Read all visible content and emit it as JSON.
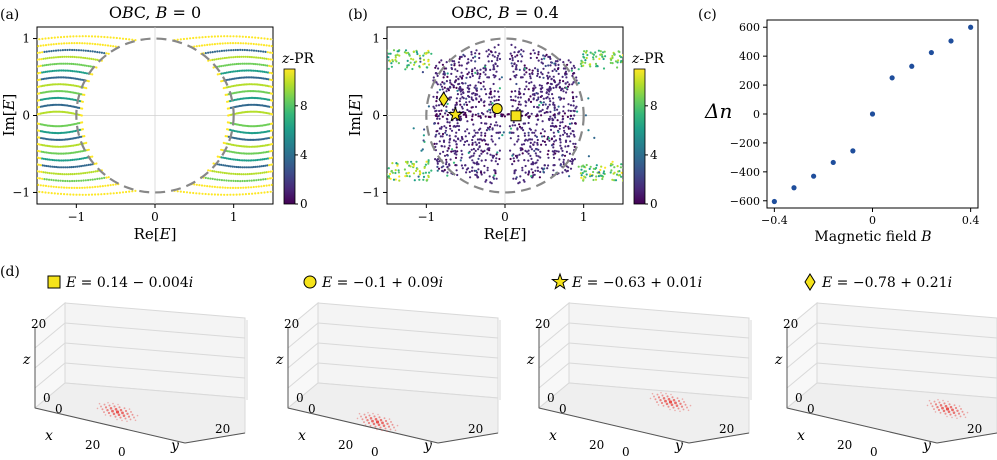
{
  "colors": {
    "viridis": [
      "#440154",
      "#482878",
      "#3e4a89",
      "#31688e",
      "#26828e",
      "#1f9e89",
      "#35b779",
      "#6ece58",
      "#b5de2b",
      "#fde725"
    ],
    "dashed_circle": "#888888",
    "marker_fill": "#f5e31a",
    "scatter_c": "#1f4e9c",
    "density": "#e6322e",
    "grid3d": "#d9d9d9"
  },
  "panel_labels": {
    "a": "(a)",
    "b": "(b)",
    "c": "(c)",
    "d": "(d)"
  },
  "panel_a": {
    "title": "OBC,  B = 0",
    "xlabel": "Re[E]",
    "ylabel": "Im[E]",
    "cbar_label": "z-PR"
  },
  "panel_b": {
    "title": "OBC,  B = 0.4",
    "xlabel": "Re[E]",
    "ylabel": "Im[E]",
    "cbar_label": "z-PR"
  },
  "panel_c": {
    "xlabel": "Magnetic field B",
    "ylabel": "Δn"
  },
  "panel_d": {
    "states": [
      {
        "marker": "square-icon",
        "label": "E = 0.14 − 0.004i"
      },
      {
        "marker": "circle-icon",
        "label": "E = −0.1 + 0.09i"
      },
      {
        "marker": "star-icon",
        "label": "E = −0.63 + 0.01i"
      },
      {
        "marker": "diamond-icon",
        "label": "E = −0.78 + 0.21i"
      }
    ],
    "axis_labels": {
      "x": "x",
      "y": "y",
      "z": "z"
    }
  },
  "chart_data": [
    {
      "type": "scatter",
      "panel": "a",
      "title": "OBC,  B = 0",
      "xlabel": "Re[E]",
      "ylabel": "Im[E]",
      "xlim": [
        -1.5,
        1.5
      ],
      "ylim": [
        -1.15,
        1.15
      ],
      "xticks": [
        -1,
        0,
        1
      ],
      "yticks": [
        -1,
        0,
        1
      ],
      "colorbar": {
        "label": "z-PR",
        "range": [
          0,
          11
        ],
        "ticks": [
          0,
          4,
          8
        ]
      },
      "reference_curve": {
        "kind": "unit-circle-dashed"
      },
      "series": [
        {
          "x": [
            0.45,
            0.8,
            1.1,
            1.4,
            -0.45,
            -0.8,
            -1.1,
            -1.4,
            0.75,
            -0.75,
            1.2,
            -1.2
          ],
          "y": [
            0.9,
            0.7,
            0.5,
            0.3,
            0.9,
            0.7,
            0.5,
            0.3,
            -0.6,
            -0.6,
            -0.9,
            -0.9
          ],
          "color_value": [
            10,
            8,
            6,
            9,
            10,
            8,
            6,
            9,
            4,
            4,
            10,
            10
          ]
        }
      ]
    },
    {
      "type": "scatter",
      "panel": "b",
      "title": "OBC,  B = 0.4",
      "xlabel": "Re[E]",
      "ylabel": "Im[E]",
      "xlim": [
        -1.5,
        1.5
      ],
      "ylim": [
        -1.15,
        1.15
      ],
      "xticks": [
        -1,
        0,
        1
      ],
      "yticks": [
        -1,
        0,
        1
      ],
      "colorbar": {
        "label": "z-PR",
        "range": [
          0,
          11
        ],
        "ticks": [
          0,
          4,
          8
        ]
      },
      "reference_curve": {
        "kind": "unit-circle-dashed"
      },
      "markers": [
        {
          "shape": "square",
          "x": 0.14,
          "y": -0.004
        },
        {
          "shape": "circle",
          "x": -0.1,
          "y": 0.09
        },
        {
          "shape": "star",
          "x": -0.63,
          "y": 0.01
        },
        {
          "shape": "diamond",
          "x": -0.78,
          "y": 0.21
        }
      ]
    },
    {
      "type": "scatter",
      "panel": "c",
      "xlabel": "Magnetic field B",
      "ylabel": "Δn",
      "xlim": [
        -0.43,
        0.43
      ],
      "ylim": [
        -650,
        650
      ],
      "xticks": [
        -0.4,
        0,
        0.4
      ],
      "yticks": [
        -600,
        -400,
        -200,
        0,
        200,
        400,
        600
      ],
      "x": [
        -0.4,
        -0.32,
        -0.24,
        -0.16,
        -0.08,
        0,
        0.08,
        0.16,
        0.24,
        0.32,
        0.4
      ],
      "y": [
        -605,
        -510,
        -430,
        -335,
        -255,
        0,
        250,
        330,
        425,
        505,
        600
      ]
    }
  ]
}
